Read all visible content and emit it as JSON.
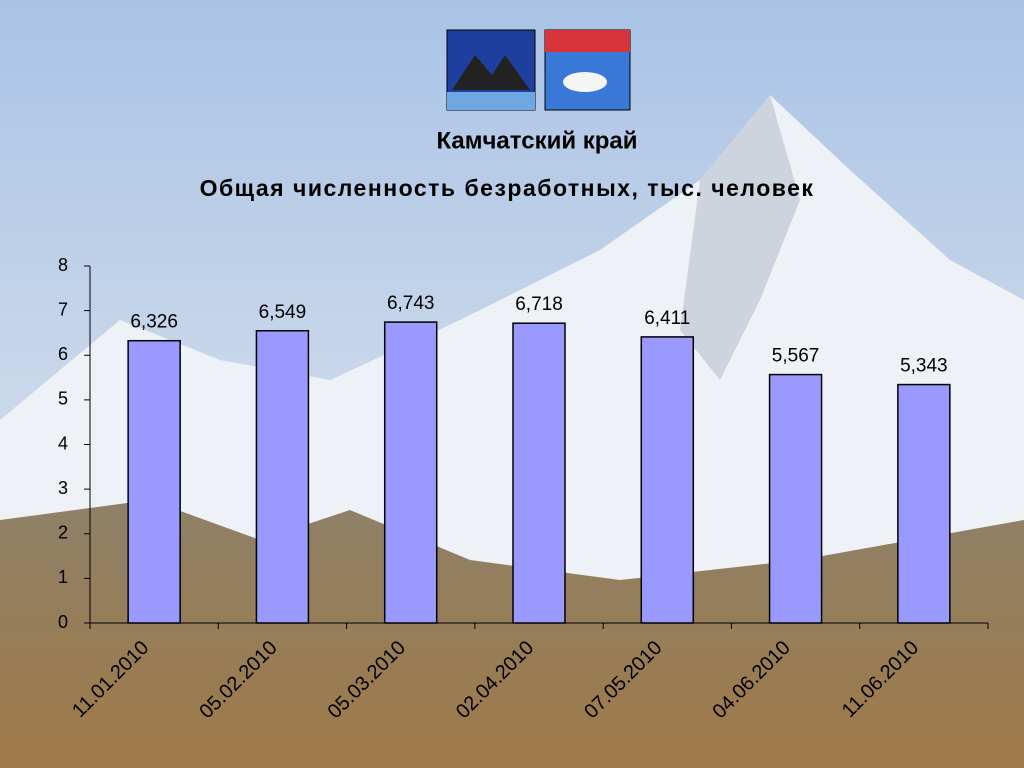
{
  "chart_data": {
    "type": "bar",
    "title": "Камчатский край",
    "subtitle": "Общая численность безработных, тыс. человек",
    "categories": [
      "11.01.2010",
      "05.02.2010",
      "05.03.2010",
      "02.04.2010",
      "07.05.2010",
      "04.06.2010",
      "11.06.2010"
    ],
    "values": [
      6.326,
      6.549,
      6.743,
      6.718,
      6.411,
      5.567,
      5.343
    ],
    "value_labels": [
      "6,326",
      "6,549",
      "6,743",
      "6,718",
      "6,411",
      "5,567",
      "5,343"
    ],
    "color": "#9999ff",
    "ylim": [
      0,
      8
    ],
    "yticks": [
      0,
      1,
      2,
      3,
      4,
      5,
      6,
      7,
      8
    ],
    "grid": false
  }
}
